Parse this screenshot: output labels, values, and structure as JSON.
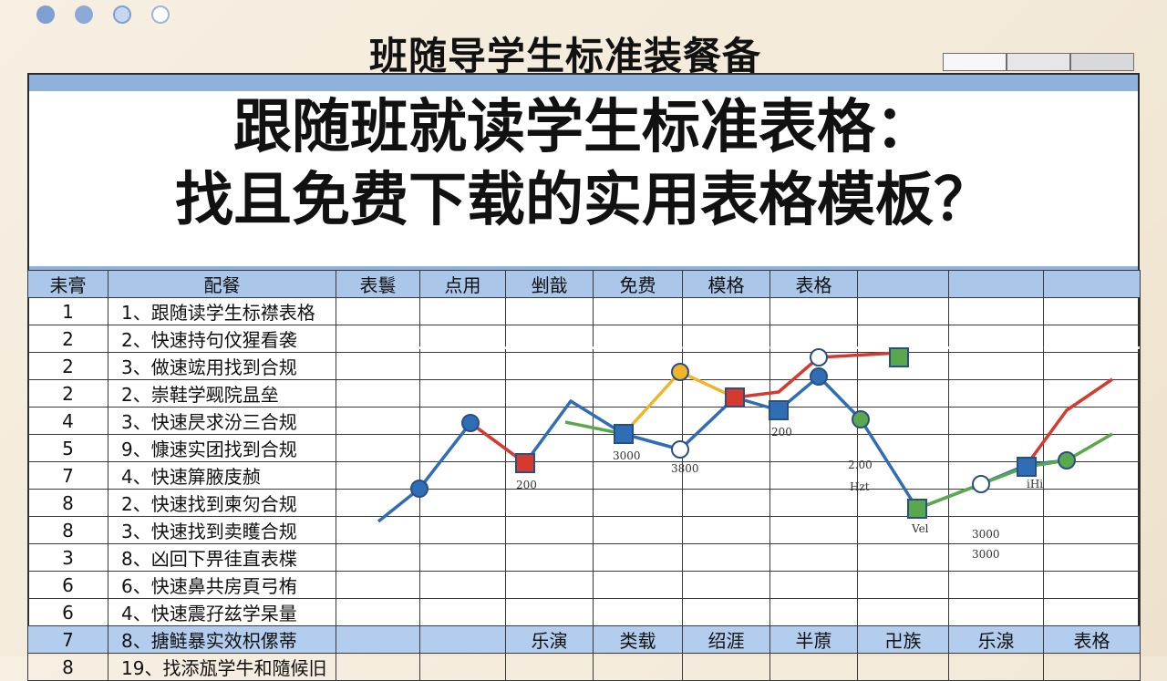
{
  "subtitle": "班随导学生标准装餐备",
  "headline": {
    "line1": "跟随班就读学生标准表格：",
    "line2": "找且免费下载的实用表格模板？"
  },
  "mini_tabs": [
    "",
    "",
    ""
  ],
  "table": {
    "headers": [
      "耒膏",
      "配餐",
      "表鬟",
      "点用",
      "剉戠",
      "免费",
      "模格",
      "表格",
      "",
      "",
      ""
    ],
    "rows": [
      {
        "num": "1",
        "item": "1、跟随读学生标襟表格"
      },
      {
        "num": "2",
        "item": "2、快速持句伩猩看袭"
      },
      {
        "num": "2",
        "item": "3、做速竤用找到合规"
      },
      {
        "num": "2",
        "item": "2、崇鞋学觋院昷垒"
      },
      {
        "num": "4",
        "item": "3、快速昃求汾三合规"
      },
      {
        "num": "5",
        "item": "9、慷速实团找到合规"
      },
      {
        "num": "7",
        "item": "4、快速箳腋庋赪"
      },
      {
        "num": "8",
        "item": "2、快速找到柬灳合规"
      },
      {
        "num": "8",
        "item": "3、快速找到卖矆合规"
      },
      {
        "num": "3",
        "item": "8、凶回下畀徍直表楪"
      },
      {
        "num": "6",
        "item": "6、快速鼻共房頁弓栯"
      },
      {
        "num": "6",
        "item": "4、快速震孖兹学杲量"
      }
    ],
    "blue_row": {
      "num": "7",
      "item": "8、搪鲢暴实效枳傫蒂",
      "cells": [
        "",
        "",
        "乐演",
        "类载",
        "绍涯",
        "半蒝",
        "卍族",
        "乐湶",
        "表格"
      ]
    },
    "last_row": {
      "num": "8",
      "item": "19、找添瓬学牛和隨候旧"
    }
  },
  "chart_data": {
    "type": "line",
    "title": "",
    "xlabel": "",
    "ylabel": "",
    "series": [
      {
        "color": "#2f6db5",
        "points": [
          [
            415,
            572
          ],
          [
            460,
            536
          ],
          [
            516,
            464
          ],
          [
            576,
            508
          ],
          [
            626,
            440
          ],
          [
            684,
            476
          ],
          [
            746,
            493
          ],
          [
            806,
            436
          ],
          [
            854,
            450
          ],
          [
            898,
            413
          ],
          [
            944,
            460
          ],
          [
            1006,
            558
          ],
          [
            1076,
            531
          ],
          [
            1126,
            510
          ],
          [
            1170,
            505
          ]
        ]
      },
      {
        "color": "#d63a2e",
        "points": [
          [
            516,
            464
          ],
          [
            576,
            508
          ]
        ]
      },
      {
        "color": "#d63a2e",
        "points": [
          [
            806,
            436
          ],
          [
            854,
            430
          ],
          [
            898,
            392
          ],
          [
            986,
            387
          ]
        ]
      },
      {
        "color": "#d63a2e",
        "points": [
          [
            1126,
            510
          ],
          [
            1170,
            450
          ],
          [
            1220,
            416
          ]
        ]
      },
      {
        "color": "#f0b429",
        "points": [
          [
            684,
            476
          ],
          [
            746,
            408
          ],
          [
            806,
            436
          ]
        ]
      },
      {
        "color": "#5aa84c",
        "points": [
          [
            620,
            463
          ],
          [
            684,
            476
          ]
        ]
      },
      {
        "color": "#5aa84c",
        "points": [
          [
            1006,
            558
          ],
          [
            1076,
            531
          ],
          [
            1126,
            512
          ],
          [
            1170,
            505
          ],
          [
            1220,
            476
          ]
        ]
      }
    ],
    "markers": [
      {
        "shape": "circle",
        "fill": "#2f6db5",
        "x": 516,
        "y": 464
      },
      {
        "shape": "circle",
        "fill": "#2f6db5",
        "x": 460,
        "y": 536
      },
      {
        "shape": "circle",
        "fill": "#ffffff",
        "x": 746,
        "y": 493
      },
      {
        "shape": "circle",
        "fill": "#2f6db5",
        "x": 898,
        "y": 413
      },
      {
        "shape": "circle",
        "fill": "#f0b429",
        "x": 746,
        "y": 408
      },
      {
        "shape": "circle",
        "fill": "#5aa84c",
        "x": 944,
        "y": 460
      },
      {
        "shape": "circle",
        "fill": "#5aa84c",
        "x": 1170,
        "y": 505
      },
      {
        "shape": "circle",
        "fill": "#ffffff",
        "x": 1076,
        "y": 531
      },
      {
        "shape": "circle",
        "fill": "#ffffff",
        "x": 898,
        "y": 392
      },
      {
        "shape": "square",
        "fill": "#d63a2e",
        "x": 576,
        "y": 508
      },
      {
        "shape": "square",
        "fill": "#2f6db5",
        "x": 684,
        "y": 476
      },
      {
        "shape": "square",
        "fill": "#d63a2e",
        "x": 806,
        "y": 436
      },
      {
        "shape": "square",
        "fill": "#2f6db5",
        "x": 854,
        "y": 450
      },
      {
        "shape": "square",
        "fill": "#5aa84c",
        "x": 986,
        "y": 392
      },
      {
        "shape": "square",
        "fill": "#5aa84c",
        "x": 1006,
        "y": 558
      },
      {
        "shape": "square",
        "fill": "#2f6db5",
        "x": 1126,
        "y": 512
      }
    ],
    "labels": [
      {
        "text": "200",
        "x": 566,
        "y": 536
      },
      {
        "text": "3000",
        "x": 672,
        "y": 504
      },
      {
        "text": "3800",
        "x": 736,
        "y": 518
      },
      {
        "text": "200",
        "x": 846,
        "y": 478
      },
      {
        "text": "2.00",
        "x": 930,
        "y": 514
      },
      {
        "text": "Hzt",
        "x": 932,
        "y": 538
      },
      {
        "text": "Vel",
        "x": 1000,
        "y": 584
      },
      {
        "text": "3000",
        "x": 1066,
        "y": 590
      },
      {
        "text": "3000",
        "x": 1066,
        "y": 612
      },
      {
        "text": "iHi",
        "x": 1126,
        "y": 535
      }
    ]
  },
  "colors": {
    "accent": "#8fb2dd",
    "header": "#aac7ea",
    "blue_row": "#b3cdee"
  }
}
